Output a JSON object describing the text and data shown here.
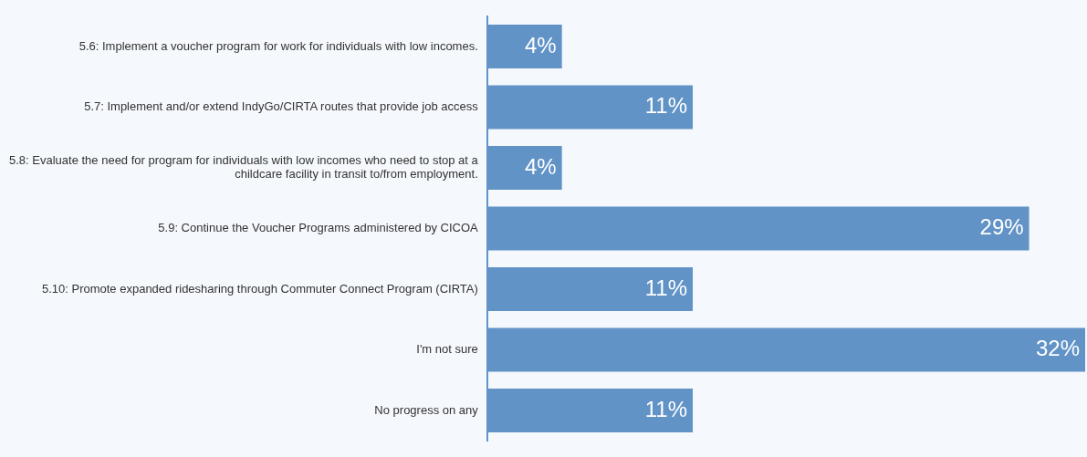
{
  "chart_data": {
    "type": "bar",
    "orientation": "horizontal",
    "categories": [
      "5.6: Implement a voucher program for work for individuals with low incomes.",
      "5.7: Implement and/or extend IndyGo/CIRTA routes that provide job access",
      "5.8: Evaluate the need for program for individuals with low incomes who need to stop at a childcare facility in transit to/from employment.",
      "5.9: Continue the Voucher Programs administered by CICOA",
      "5.10: Promote expanded ridesharing through Commuter Connect Program (CIRTA)",
      "I'm not sure",
      "No progress on any"
    ],
    "values": [
      4,
      11,
      4,
      29,
      11,
      32,
      11
    ],
    "value_labels": [
      "4%",
      "11%",
      "4%",
      "29%",
      "11%",
      "32%",
      "11%"
    ],
    "color": "#6193c7",
    "xlim": [
      0,
      32
    ],
    "tick_labels": "y",
    "grid": false,
    "legend": false
  }
}
